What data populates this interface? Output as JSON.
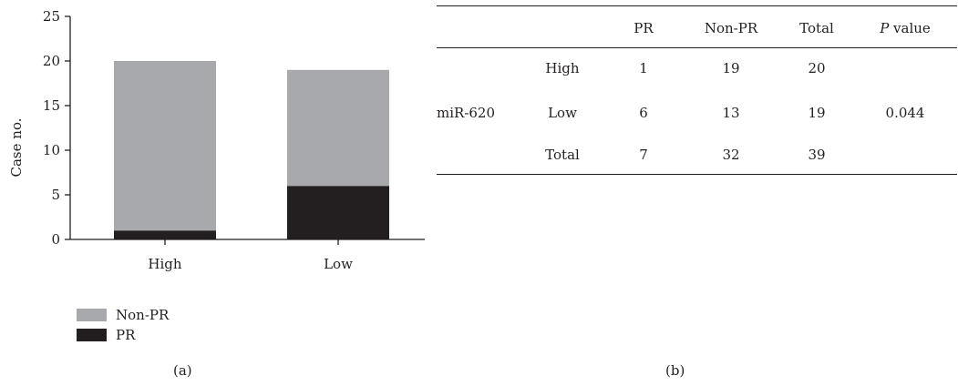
{
  "chart_data": {
    "type": "bar",
    "stacked": true,
    "categories": [
      "High",
      "Low"
    ],
    "series": [
      {
        "name": "PR",
        "values": [
          1,
          6
        ],
        "color": "#231f20"
      },
      {
        "name": "Non-PR",
        "values": [
          19,
          13
        ],
        "color": "#a7a9ac"
      }
    ],
    "ylabel": "Case no.",
    "ylim": [
      0,
      25
    ],
    "yticks": [
      0,
      5,
      10,
      15,
      20,
      25
    ],
    "legend": {
      "placement": "bottom-left",
      "order": [
        "Non-PR",
        "PR"
      ]
    },
    "grid": false
  },
  "panel_labels": {
    "a": "(a)",
    "b": "(b)"
  },
  "table": {
    "headers": [
      "",
      "",
      "PR",
      "Non-PR",
      "Total",
      "P value"
    ],
    "pvalue_label": {
      "italic": "P",
      "rest": " value"
    },
    "group_label": "miR-620",
    "rows": [
      {
        "label": "High",
        "pr": "1",
        "nonpr": "19",
        "total": "20"
      },
      {
        "label": "Low",
        "pr": "6",
        "nonpr": "13",
        "total": "19"
      },
      {
        "label": "Total",
        "pr": "7",
        "nonpr": "32",
        "total": "39"
      }
    ],
    "p_value": "0.044"
  }
}
